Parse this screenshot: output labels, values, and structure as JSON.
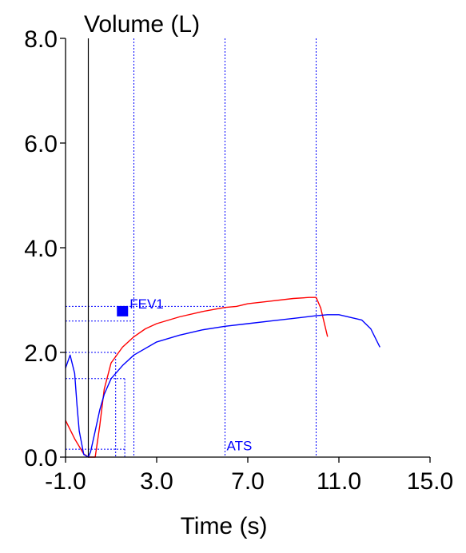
{
  "chart_data": {
    "type": "line",
    "title": "",
    "ylabel": "Volume (L)",
    "xlabel": "Time (s)",
    "xlim": [
      -1.0,
      15.0
    ],
    "ylim": [
      0.0,
      8.0
    ],
    "x_ticks": [
      "-1.0",
      "3.0",
      "7.0",
      "11.0",
      "15.0"
    ],
    "x_tick_values": [
      -1,
      3,
      7,
      11,
      15
    ],
    "y_ticks": [
      "8.0",
      "6.0",
      "4.0",
      "2.0",
      "0.0"
    ],
    "y_tick_values": [
      8,
      6,
      4,
      2,
      0
    ],
    "grid": false,
    "series": [
      {
        "color": "#ff0000",
        "x": [
          -1.0,
          -0.6,
          -0.2,
          0.0,
          0.3,
          0.5,
          0.7,
          1.0,
          1.5,
          2.0,
          2.5,
          3.0,
          4.0,
          5.0,
          6.0,
          6.5,
          7.0,
          8.0,
          9.0,
          9.7,
          10.0,
          10.2,
          10.5
        ],
        "y": [
          0.7,
          0.35,
          0.06,
          0.0,
          0.0,
          0.6,
          1.3,
          1.8,
          2.1,
          2.3,
          2.45,
          2.55,
          2.68,
          2.78,
          2.86,
          2.88,
          2.93,
          2.98,
          3.03,
          3.05,
          3.05,
          2.85,
          2.3
        ]
      },
      {
        "color": "#0000ff",
        "x": [
          -1.0,
          -0.8,
          -0.6,
          -0.5,
          -0.4,
          -0.2,
          0.0,
          0.1,
          0.3,
          0.5,
          0.7,
          1.0,
          1.5,
          2.0,
          3.0,
          4.0,
          5.0,
          6.0,
          7.0,
          8.0,
          9.0,
          10.0,
          10.5,
          11.0,
          12.0,
          12.4,
          12.8
        ],
        "y": [
          1.7,
          1.95,
          1.6,
          1.0,
          0.5,
          0.05,
          0.0,
          0.1,
          0.5,
          0.9,
          1.2,
          1.5,
          1.75,
          1.95,
          2.2,
          2.33,
          2.43,
          2.5,
          2.55,
          2.6,
          2.65,
          2.7,
          2.72,
          2.72,
          2.62,
          2.45,
          2.1
        ]
      }
    ],
    "reference_lines": {
      "color": "#0000ff",
      "vertical_x": [
        0.0,
        2.0,
        6.0,
        10.0
      ],
      "short_vertical": [
        {
          "x": 1.2,
          "y_top": 2.0
        },
        {
          "x": 1.6,
          "y_top": 1.5
        }
      ],
      "horizontal": [
        {
          "y": 2.88,
          "x_end": 6.0
        },
        {
          "y": 2.6,
          "x_end": 2.0
        },
        {
          "y": 2.0,
          "x_end": 1.2
        },
        {
          "y": 1.5,
          "x_end": 1.6
        },
        {
          "y": 0.15,
          "x_end": 1.6
        }
      ]
    },
    "solid_vertical_x": 0.0,
    "markers": [
      {
        "label": "FEV1",
        "x": 1.5,
        "y": 2.78,
        "color": "#0000ff"
      }
    ],
    "annotations": [
      {
        "label": "ATS",
        "x": 6.0,
        "y": 0.1,
        "color": "#0000ff"
      }
    ]
  }
}
